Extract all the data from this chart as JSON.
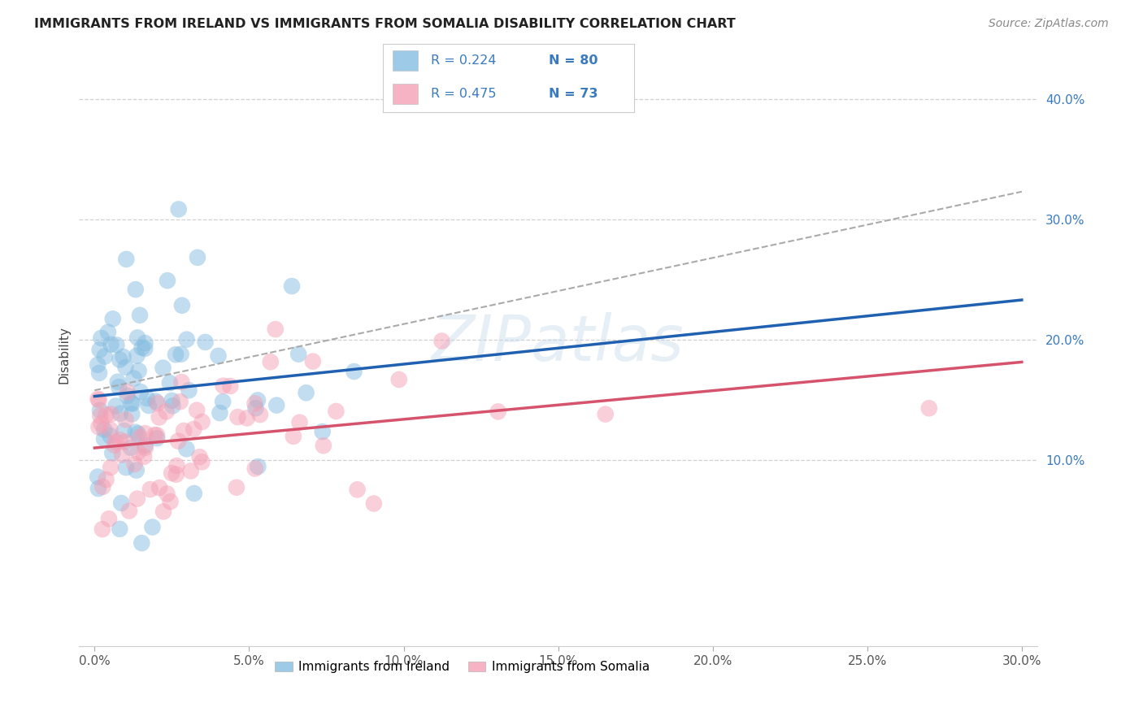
{
  "title": "IMMIGRANTS FROM IRELAND VS IMMIGRANTS FROM SOMALIA DISABILITY CORRELATION CHART",
  "source": "Source: ZipAtlas.com",
  "ylabel": "Disability",
  "xlim": [
    -0.005,
    0.305
  ],
  "ylim": [
    -0.055,
    0.43
  ],
  "xticks": [
    0.0,
    0.05,
    0.1,
    0.15,
    0.2,
    0.25,
    0.3
  ],
  "yticks": [
    0.1,
    0.2,
    0.3,
    0.4
  ],
  "ytick_labels": [
    "10.0%",
    "20.0%",
    "30.0%",
    "40.0%"
  ],
  "xtick_labels": [
    "0.0%",
    "5.0%",
    "10.0%",
    "15.0%",
    "20.0%",
    "25.0%",
    "30.0%"
  ],
  "ireland_color": "#85bde0",
  "somalia_color": "#f4a0b5",
  "ireland_line_color": "#2060b0",
  "somalia_line_color": "#d6536d",
  "dashed_line_color": "#aaaaaa",
  "R_ireland": 0.224,
  "N_ireland": 80,
  "R_somalia": 0.475,
  "N_somalia": 73,
  "legend_text_color": "#3a7abf",
  "legend_N_color": "#e05050",
  "legend_R_label_color": "#222222",
  "watermark": "ZIPatlas",
  "background_color": "#ffffff",
  "grid_color": "#cccccc",
  "title_color": "#222222",
  "source_color": "#888888",
  "ylabel_color": "#444444",
  "tick_color": "#555555",
  "ytick_color": "#3a7abf"
}
